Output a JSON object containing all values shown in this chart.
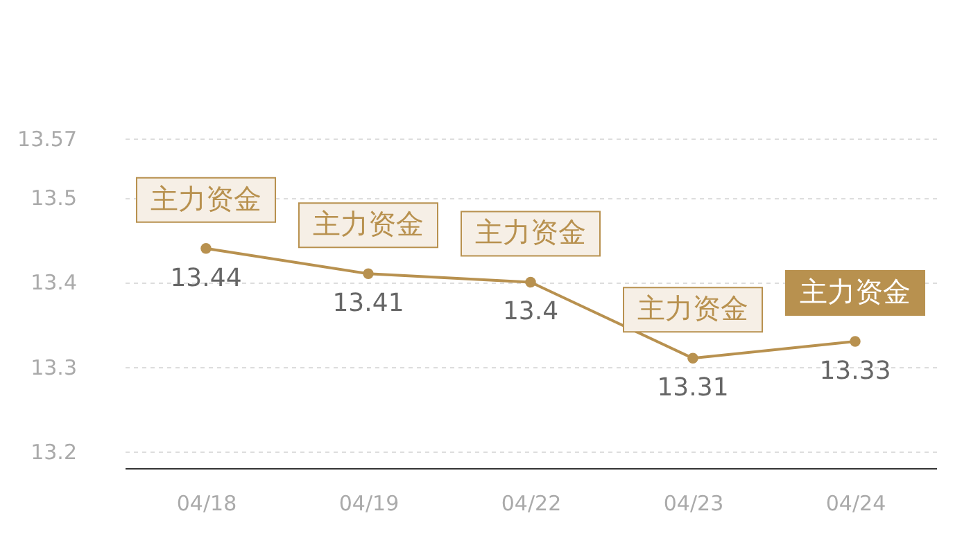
{
  "chart_data": {
    "type": "line",
    "categories": [
      "04/18",
      "04/19",
      "04/22",
      "04/23",
      "04/24"
    ],
    "series": [
      {
        "color": "#b8914f",
        "values": [
          13.44,
          13.41,
          13.4,
          13.31,
          13.33
        ]
      }
    ],
    "ylim": [
      13.18,
      13.57
    ],
    "yticks": [
      13.2,
      13.3,
      13.4,
      13.5,
      13.57
    ],
    "grid": "y",
    "marker": "circle",
    "line_style": "solid",
    "data_labels": true,
    "legend": false,
    "annotations": [
      "主力资金",
      "主力资金",
      "主力资金",
      "主力资金",
      "主力资金"
    ]
  }
}
